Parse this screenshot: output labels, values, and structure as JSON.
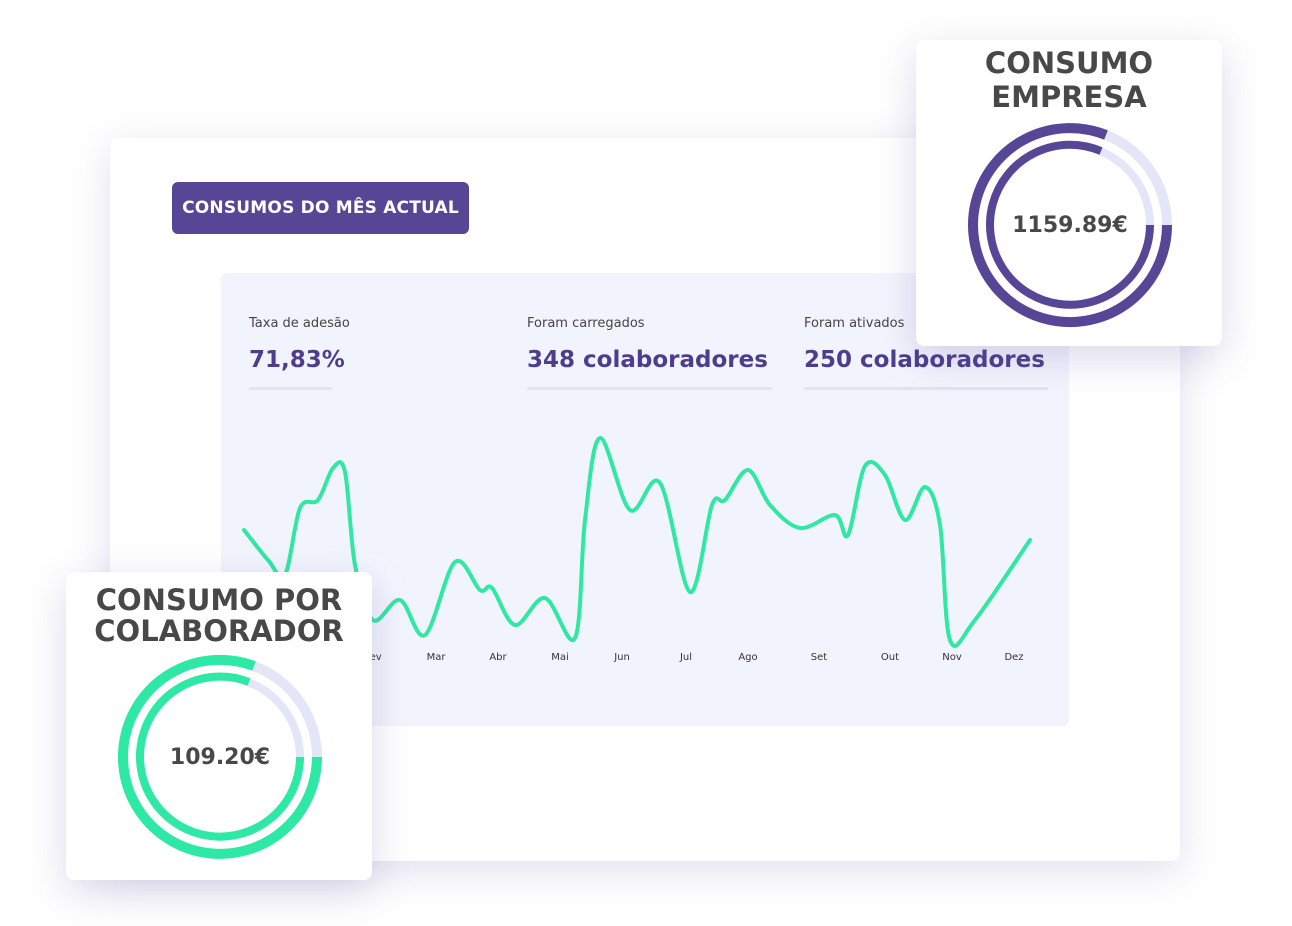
{
  "dashboard": {
    "button": "CONSUMOS DO MÊS ACTUAL",
    "stats": [
      {
        "label": "Taxa de adesão",
        "value": "71,83%"
      },
      {
        "label": "Foram carregados",
        "value": "348 colaboradores"
      },
      {
        "label": "Foram ativados",
        "value": "250 colaboradores"
      }
    ],
    "months": [
      "Fev",
      "Mar",
      "Abr",
      "Mai",
      "Jun",
      "Jul",
      "Ago",
      "Set",
      "Out",
      "Nov",
      "Dez"
    ]
  },
  "company_card": {
    "title_lines": [
      "CONSUMO",
      "EMPRESA"
    ],
    "value": "1159.89€"
  },
  "employee_card": {
    "title_lines": [
      "CONSUMO POR",
      "COLABORADOR"
    ],
    "value": "109.20€"
  }
}
